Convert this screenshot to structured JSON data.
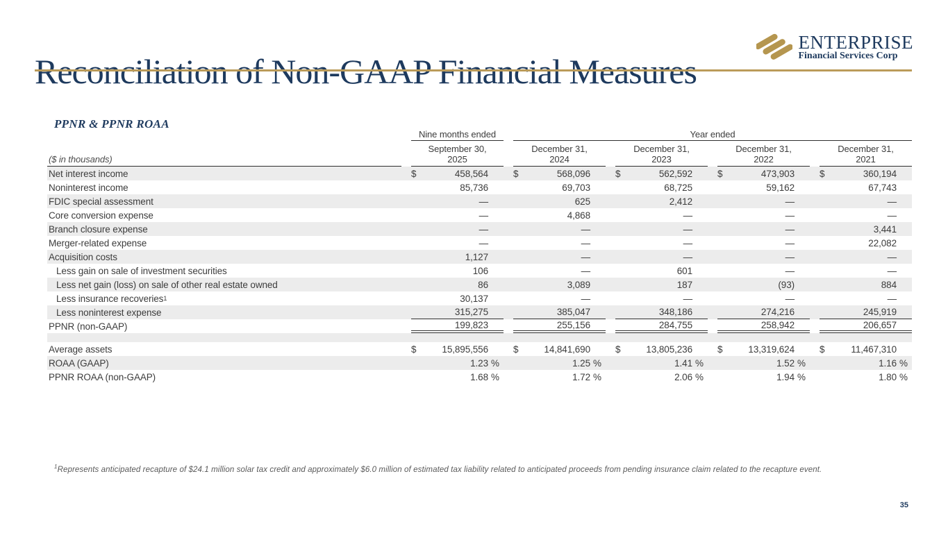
{
  "slide": {
    "title": "Reconciliation of Non-GAAP Financial Measures",
    "page_number": "35"
  },
  "logo": {
    "name": "ENTERPRISE",
    "subtitle": "Financial Services Corp"
  },
  "section": {
    "heading": "PPNR & PPNR ROAA",
    "units_label": "($ in thousands)"
  },
  "colors": {
    "navy": "#1e3a5e",
    "gold": "#bb9b59",
    "logo_gold": "#b5964f",
    "row_shade": "#ececec",
    "rule": "#2e2e2e",
    "body_text": "#3c3c3c",
    "footnote_text": "#5a5a5a"
  },
  "table": {
    "currency_symbol": "$",
    "percent_symbol": "%",
    "period_groups": [
      {
        "label": "Nine months ended",
        "span": 1
      },
      {
        "label": "Year ended",
        "span": 4
      }
    ],
    "columns": [
      {
        "line1": "September 30,",
        "line2": "2025"
      },
      {
        "line1": "December 31,",
        "line2": "2024"
      },
      {
        "line1": "December 31,",
        "line2": "2023"
      },
      {
        "line1": "December 31,",
        "line2": "2022"
      },
      {
        "line1": "December 31,",
        "line2": "2021"
      }
    ],
    "rows": [
      {
        "label": "Net interest income",
        "dollar": true,
        "shaded": true,
        "values": [
          "458,564",
          "568,096",
          "562,592",
          "473,903",
          "360,194"
        ]
      },
      {
        "label": "Noninterest income",
        "shaded": false,
        "values": [
          "85,736",
          "69,703",
          "68,725",
          "59,162",
          "67,743"
        ]
      },
      {
        "label": "FDIC special assessment",
        "shaded": true,
        "values": [
          "—",
          "625",
          "2,412",
          "—",
          "—"
        ]
      },
      {
        "label": "Core conversion expense",
        "shaded": false,
        "values": [
          "—",
          "4,868",
          "—",
          "—",
          "—"
        ]
      },
      {
        "label": "Branch closure expense",
        "shaded": true,
        "values": [
          "—",
          "—",
          "—",
          "—",
          "3,441"
        ]
      },
      {
        "label": "Merger-related expense",
        "shaded": false,
        "values": [
          "—",
          "—",
          "—",
          "—",
          "22,082"
        ]
      },
      {
        "label": "Acquisition costs",
        "shaded": true,
        "values": [
          "1,127",
          "—",
          "—",
          "—",
          "—"
        ]
      },
      {
        "label": "Less gain on sale of investment securities",
        "indent": true,
        "shaded": false,
        "values": [
          "106",
          "—",
          "601",
          "—",
          "—"
        ]
      },
      {
        "label": "Less net gain (loss) on sale of other real estate owned",
        "indent": true,
        "shaded": true,
        "values": [
          "86",
          "3,089",
          "187",
          "(93)",
          "884"
        ]
      },
      {
        "label": "Less insurance recoveries",
        "sup": "1",
        "indent": true,
        "shaded": false,
        "values": [
          "30,137",
          "—",
          "—",
          "—",
          "—"
        ]
      },
      {
        "label": "Less noninterest expense",
        "indent": true,
        "shaded": true,
        "underline": "single",
        "values": [
          "315,275",
          "385,047",
          "348,186",
          "274,216",
          "245,919"
        ]
      },
      {
        "label": "PPNR (non-GAAP)",
        "shaded": false,
        "underline": "double",
        "values": [
          "199,823",
          "255,156",
          "284,755",
          "258,942",
          "206,657"
        ]
      },
      {
        "spacer": true,
        "shaded": true,
        "label": "",
        "values": []
      },
      {
        "label": "Average assets",
        "dollar": true,
        "shaded": false,
        "values": [
          "15,895,556",
          "14,841,690",
          "13,805,236",
          "13,319,624",
          "11,467,310"
        ]
      },
      {
        "label": "ROAA (GAAP)",
        "percent": true,
        "shaded": true,
        "values": [
          "1.23",
          "1.25",
          "1.41",
          "1.52",
          "1.16"
        ]
      },
      {
        "label": "PPNR ROAA (non-GAAP)",
        "percent": true,
        "shaded": false,
        "values": [
          "1.68",
          "1.72",
          "2.06",
          "1.94",
          "1.80"
        ]
      }
    ]
  },
  "footnote": {
    "sup": "1",
    "text": "Represents anticipated recapture of $24.1 million solar tax credit and approximately $6.0 million of estimated tax liability related to anticipated proceeds from pending insurance claim related to the recapture event."
  }
}
